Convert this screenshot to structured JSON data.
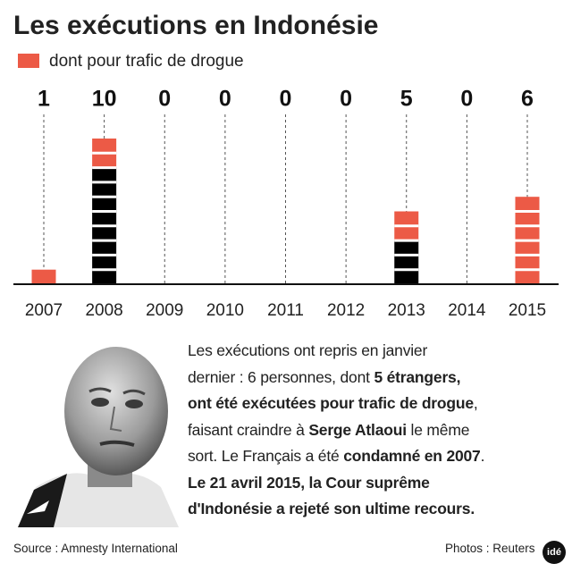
{
  "chart_data": {
    "type": "stacked-blocks",
    "title": "Les exécutions en Indonésie",
    "categories": [
      "2007",
      "2008",
      "2009",
      "2010",
      "2011",
      "2012",
      "2013",
      "2014",
      "2015"
    ],
    "totals": [
      1,
      10,
      0,
      0,
      0,
      0,
      5,
      0,
      6
    ],
    "series": [
      {
        "color": "#000000",
        "values": [
          0,
          8,
          0,
          0,
          0,
          0,
          3,
          0,
          0
        ]
      },
      {
        "name": "dont pour trafic de drogue",
        "color": "#ec5a46",
        "values": [
          1,
          2,
          0,
          0,
          0,
          0,
          2,
          0,
          6
        ]
      }
    ],
    "ylim": [
      0,
      10
    ],
    "legend": "top-left"
  },
  "text": {
    "lines": [
      [
        {
          "t": "Les exécutions ont repris en janvier",
          "b": false
        }
      ],
      [
        {
          "t": "dernier : 6 personnes, dont ",
          "b": false
        },
        {
          "t": "5 étrangers,",
          "b": true
        }
      ],
      [
        {
          "t": "ont été exécutées pour trafic de drogue",
          "b": true
        },
        {
          "t": ",",
          "b": false
        }
      ],
      [
        {
          "t": "faisant craindre à ",
          "b": false
        },
        {
          "t": "Serge Atlaoui",
          "b": true
        },
        {
          "t": " le même",
          "b": false
        }
      ],
      [
        {
          "t": "sort. Le Français a été ",
          "b": false
        },
        {
          "t": "condamné en 2007",
          "b": true
        },
        {
          "t": ".",
          "b": false
        }
      ],
      [
        {
          "t": "Le 21 avril 2015, la Cour suprême",
          "b": true
        }
      ],
      [
        {
          "t": "d'Indonésie a rejeté son ultime recours.",
          "b": true
        }
      ]
    ]
  },
  "footer": {
    "source": "Source : Amnesty International",
    "photos": "Photos : Reuters",
    "logo": "idé"
  }
}
